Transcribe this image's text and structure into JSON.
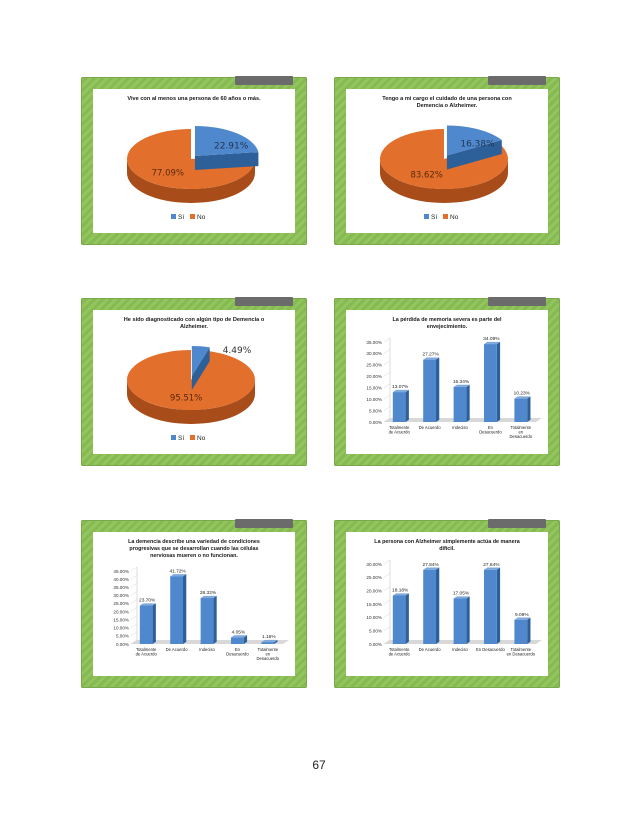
{
  "page_number": "67",
  "colors": {
    "blue": "#4f88cc",
    "blue_dark": "#2d5f99",
    "orange": "#e26f2c",
    "orange_dark": "#a84d1a",
    "frame_green": "#93c55e"
  },
  "chart_data": [
    {
      "type": "pie",
      "title": [
        "Vive con al menos una persona de 60 años o más."
      ],
      "slices": [
        {
          "label": "Sí",
          "value": 22.91,
          "text": "22.91%"
        },
        {
          "label": "No",
          "value": 77.09,
          "text": "77.09%"
        }
      ],
      "legend": [
        "Sí",
        "No"
      ]
    },
    {
      "type": "pie",
      "title": [
        "Tengo a mi cargo el cuidado de una persona con",
        "Demencia o Alzheimer."
      ],
      "slices": [
        {
          "label": "Sí",
          "value": 16.38,
          "text": "16.38%"
        },
        {
          "label": "No",
          "value": 83.62,
          "text": "83.62%"
        }
      ],
      "legend": [
        "Sí",
        "No"
      ]
    },
    {
      "type": "pie",
      "title": [
        "He sido diagnosticado con algún tipo de Demencia o",
        "Alzheimer."
      ],
      "slices": [
        {
          "label": "Sí",
          "value": 4.49,
          "text": "4.49%"
        },
        {
          "label": "No",
          "value": 95.51,
          "text": "95.51%"
        }
      ],
      "legend": [
        "Sí",
        "No"
      ]
    },
    {
      "type": "bar",
      "title": [
        "La pérdida de memoria severa es parte del",
        "envejecimiento."
      ],
      "categories": [
        [
          "Totalmente",
          "de Acuerdo"
        ],
        [
          "De Acuerdo"
        ],
        [
          "Indeciso"
        ],
        [
          "En",
          "Desacuerdo"
        ],
        [
          "Totalmente",
          "en",
          "Desacuerdo"
        ]
      ],
      "values": [
        13.07,
        27.27,
        15.34,
        34.09,
        10.23
      ],
      "value_labels": [
        "13.07%",
        "27.27%",
        "15.34%",
        "34.09%",
        "10.23%"
      ],
      "yticks": [
        "0.00%",
        "5.00%",
        "10.00%",
        "15.00%",
        "20.00%",
        "25.00%",
        "30.00%",
        "35.00%"
      ],
      "ylim": [
        0,
        35
      ]
    },
    {
      "type": "bar",
      "title": [
        "La demencia describe una variedad de condiciones",
        "progresivas que se desarrollan cuando las células",
        "nerviosas mueren o no funcionan."
      ],
      "categories": [
        [
          "Totalmente",
          "de Acuerdo"
        ],
        [
          "De Acuerdo"
        ],
        [
          "Indeciso"
        ],
        [
          "En",
          "Desacuerdo"
        ],
        [
          "Totalmente",
          "en",
          "Desacuerdo"
        ]
      ],
      "values": [
        23.7,
        41.72,
        28.32,
        4.05,
        1.16
      ],
      "value_labels": [
        "23.70%",
        "41.72%",
        "28.32%",
        "4.05%",
        "1.16%"
      ],
      "yticks": [
        "0.00%",
        "5.00%",
        "10.00%",
        "15.00%",
        "20.00%",
        "25.00%",
        "30.00%",
        "35.00%",
        "40.00%",
        "45.00%"
      ],
      "ylim": [
        0,
        45
      ]
    },
    {
      "type": "bar",
      "title": [
        "La persona con Alzheimer simplemente actúa de manera",
        "difícil."
      ],
      "categories": [
        [
          "Totalmente",
          "de Acuerdo"
        ],
        [
          "De Acuerdo"
        ],
        [
          "Indeciso"
        ],
        [
          "En Desacuerdo"
        ],
        [
          "Totalmente",
          "en Desacuerdo"
        ]
      ],
      "values": [
        18.18,
        27.84,
        17.05,
        27.84,
        9.09
      ],
      "value_labels": [
        "18.18%",
        "27.84%",
        "17.05%",
        "27.84%",
        "9.09%"
      ],
      "yticks": [
        "0.00%",
        "5.00%",
        "10.00%",
        "15.00%",
        "20.00%",
        "25.00%",
        "30.00%"
      ],
      "ylim": [
        0,
        30
      ]
    }
  ]
}
